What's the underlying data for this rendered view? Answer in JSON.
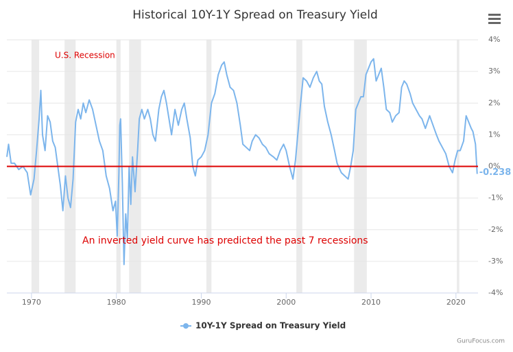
{
  "chart_data": {
    "type": "line",
    "title": "Historical 10Y-1Y Spread on Treasury Yield",
    "annotations": [
      "U.S. Recession",
      "An inverted yield curve has predicted the past 7 recessions"
    ],
    "recessions": [
      [
        1970.0,
        1970.9
      ],
      [
        1973.9,
        1975.2
      ],
      [
        1980.0,
        1980.5
      ],
      [
        1981.5,
        1982.9
      ],
      [
        1990.6,
        1991.2
      ],
      [
        2001.2,
        2001.9
      ],
      [
        2008.0,
        2009.5
      ],
      [
        2020.1,
        2020.4
      ]
    ],
    "reference_line": {
      "value": 0,
      "color": "#dd0000"
    },
    "x": [
      1967.1,
      1967.3,
      1967.6,
      1968,
      1968.5,
      1969,
      1969.5,
      1969.9,
      1970.3,
      1970.6,
      1970.9,
      1971.1,
      1971.3,
      1971.6,
      1971.9,
      1972.2,
      1972.5,
      1972.8,
      1973.1,
      1973.4,
      1973.7,
      1974.0,
      1974.3,
      1974.6,
      1974.9,
      1975.2,
      1975.5,
      1975.8,
      1976.1,
      1976.4,
      1976.8,
      1977.2,
      1977.6,
      1978.0,
      1978.4,
      1978.8,
      1979.2,
      1979.6,
      1979.9,
      1980.1,
      1980.3,
      1980.4,
      1980.5,
      1980.7,
      1980.9,
      1981.1,
      1981.3,
      1981.5,
      1981.7,
      1981.9,
      1982.2,
      1982.5,
      1982.7,
      1983.0,
      1983.3,
      1983.7,
      1984.0,
      1984.3,
      1984.6,
      1985.0,
      1985.3,
      1985.6,
      1985.9,
      1986.2,
      1986.5,
      1986.9,
      1987.3,
      1987.7,
      1988.0,
      1988.3,
      1988.7,
      1989.0,
      1989.3,
      1989.6,
      1990.0,
      1990.4,
      1990.8,
      1991.2,
      1991.6,
      1992.0,
      1992.4,
      1992.7,
      1993.0,
      1993.4,
      1993.8,
      1994.2,
      1994.6,
      1994.9,
      1995.3,
      1995.7,
      1996.0,
      1996.4,
      1996.8,
      1997.2,
      1997.6,
      1998.0,
      1998.5,
      1998.9,
      1999.3,
      1999.7,
      2000.0,
      2000.4,
      2000.8,
      2001.1,
      2001.4,
      2001.7,
      2002.0,
      2002.4,
      2002.8,
      2003.2,
      2003.6,
      2003.9,
      2004.2,
      2004.5,
      2004.9,
      2005.3,
      2005.7,
      2006.0,
      2006.5,
      2006.9,
      2007.3,
      2007.6,
      2007.9,
      2008.2,
      2008.5,
      2008.8,
      2009.1,
      2009.4,
      2009.7,
      2010.0,
      2010.3,
      2010.6,
      2010.9,
      2011.2,
      2011.5,
      2011.8,
      2012.2,
      2012.5,
      2012.9,
      2013.3,
      2013.6,
      2013.9,
      2014.2,
      2014.6,
      2014.9,
      2015.3,
      2015.7,
      2016.0,
      2016.4,
      2016.9,
      2017.3,
      2017.7,
      2018.0,
      2018.4,
      2018.8,
      2019.2,
      2019.6,
      2019.9,
      2020.2,
      2020.5,
      2020.9,
      2021.2,
      2021.5,
      2021.8,
      2022.0,
      2022.3,
      2022.5
    ],
    "series": [
      {
        "name": "10Y-1Y Spread on Treasury Yield",
        "color": "#7cb5ec",
        "values": [
          0.3,
          0.7,
          0.1,
          0.1,
          -0.1,
          0.0,
          -0.2,
          -0.9,
          -0.4,
          0.5,
          1.5,
          2.4,
          1.0,
          0.5,
          1.6,
          1.4,
          0.8,
          0.6,
          0.0,
          -0.6,
          -1.4,
          -0.3,
          -1.0,
          -1.3,
          -0.4,
          1.4,
          1.8,
          1.5,
          2.0,
          1.7,
          2.1,
          1.8,
          1.3,
          0.8,
          0.5,
          -0.3,
          -0.7,
          -1.4,
          -1.1,
          -2.2,
          -0.2,
          1.3,
          1.5,
          -0.5,
          -3.1,
          -1.5,
          -2.3,
          0.0,
          -1.2,
          0.3,
          -0.8,
          0.5,
          1.5,
          1.8,
          1.5,
          1.8,
          1.5,
          1.0,
          0.8,
          1.8,
          2.2,
          2.4,
          2.0,
          1.5,
          1.0,
          1.8,
          1.3,
          1.8,
          2.0,
          1.5,
          0.9,
          0.0,
          -0.3,
          0.2,
          0.3,
          0.5,
          1.0,
          2.0,
          2.3,
          2.9,
          3.2,
          3.3,
          2.9,
          2.5,
          2.4,
          2.0,
          1.3,
          0.7,
          0.6,
          0.5,
          0.8,
          1.0,
          0.9,
          0.7,
          0.6,
          0.4,
          0.3,
          0.2,
          0.5,
          0.7,
          0.5,
          0.0,
          -0.4,
          0.2,
          1.1,
          2.0,
          2.8,
          2.7,
          2.5,
          2.8,
          3.0,
          2.7,
          2.6,
          1.9,
          1.4,
          1.0,
          0.5,
          0.1,
          -0.2,
          -0.3,
          -0.4,
          0.0,
          0.5,
          1.8,
          2.0,
          2.2,
          2.2,
          2.9,
          3.1,
          3.3,
          3.4,
          2.7,
          2.9,
          3.1,
          2.5,
          1.8,
          1.7,
          1.4,
          1.6,
          1.7,
          2.5,
          2.7,
          2.6,
          2.3,
          2.0,
          1.8,
          1.6,
          1.5,
          1.2,
          1.6,
          1.3,
          1.0,
          0.8,
          0.6,
          0.4,
          0.0,
          -0.2,
          0.2,
          0.5,
          0.5,
          0.8,
          1.6,
          1.4,
          1.2,
          1.1,
          0.7,
          -0.238
        ]
      }
    ],
    "xlim": [
      1967.1,
      2022.6
    ],
    "ylim": [
      -4,
      4
    ],
    "xticks": [
      1970,
      1980,
      1990,
      2000,
      2010,
      2020
    ],
    "yticks": [
      {
        "value": -4,
        "label": "-4%"
      },
      {
        "value": -3,
        "label": "-3%"
      },
      {
        "value": -2,
        "label": "-2%"
      },
      {
        "value": -1,
        "label": "-1%"
      },
      {
        "value": 0,
        "label": "0%"
      },
      {
        "value": 1,
        "label": "1%"
      },
      {
        "value": 2,
        "label": "2%"
      },
      {
        "value": 3,
        "label": "3%"
      },
      {
        "value": 4,
        "label": "4%"
      }
    ],
    "grid": true,
    "legend": "bottom",
    "credit": "GuruFocus.com"
  }
}
